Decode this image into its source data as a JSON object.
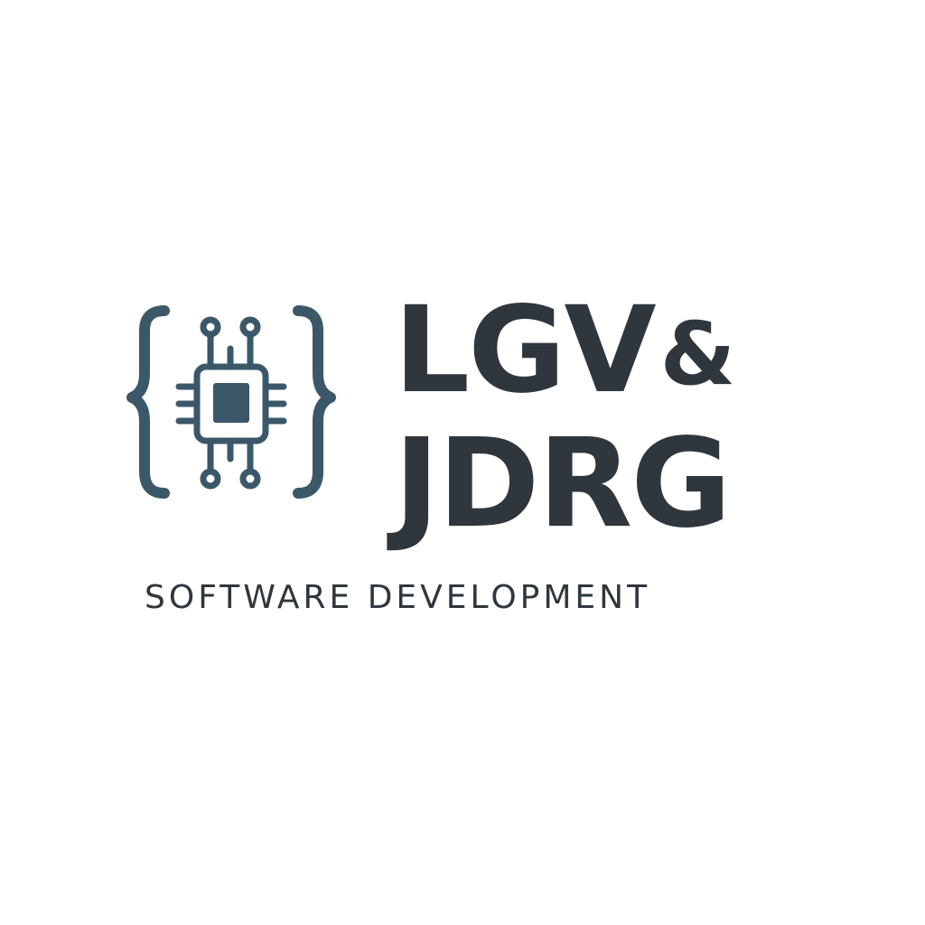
{
  "logo": {
    "icon": "braces-chip-icon",
    "wordmark_line1_main": "LGV",
    "wordmark_line1_amp": "&",
    "wordmark_line2": "JDRG",
    "tagline": "SOFTWARE DEVELOPMENT"
  },
  "colors": {
    "icon": "#3a5868",
    "text": "#2f363c",
    "background": "#ffffff"
  }
}
